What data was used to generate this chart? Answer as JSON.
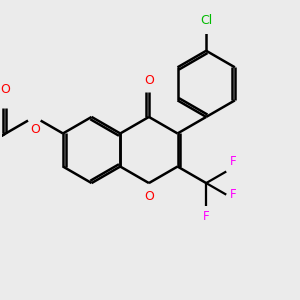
{
  "bg_color": "#ebebeb",
  "bond_color": "#000000",
  "bond_width": 1.8,
  "o_color": "#ff0000",
  "f_color": "#ff00ff",
  "cl_color": "#00bb00",
  "figsize": [
    3.0,
    3.0
  ],
  "dpi": 100,
  "xlim": [
    -4.5,
    4.5
  ],
  "ylim": [
    -3.5,
    3.5
  ]
}
